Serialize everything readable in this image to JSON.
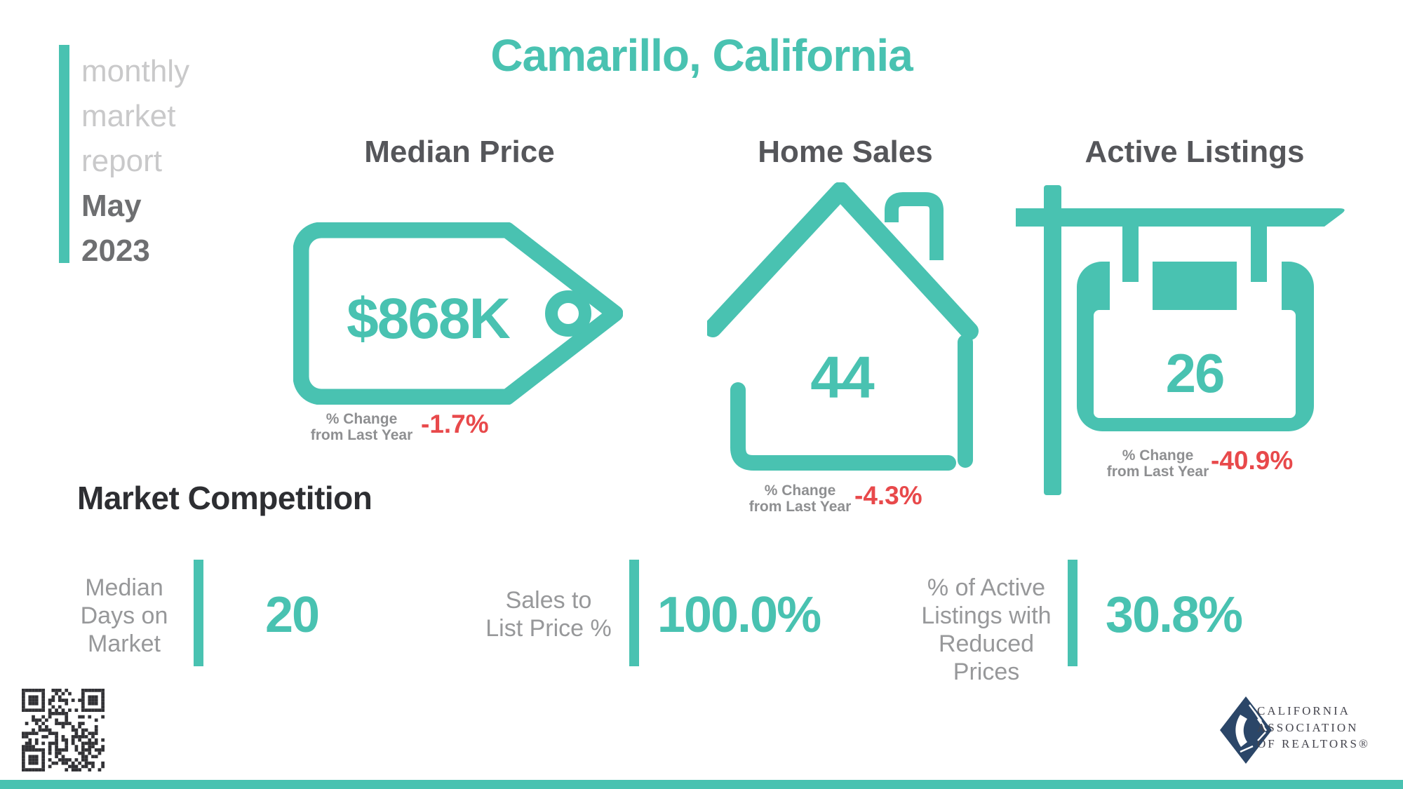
{
  "sidebar": {
    "brand_lines": [
      "monthly",
      "market",
      "report"
    ],
    "period_lines": [
      "May",
      "2023"
    ]
  },
  "title": "Camarillo, California",
  "metrics": [
    {
      "id": "median-price",
      "label": "Median Price",
      "value": "$868K",
      "change_label": [
        "% Change",
        "from Last Year"
      ],
      "change_value": "-1.7%",
      "icon": "price-tag-icon"
    },
    {
      "id": "home-sales",
      "label": "Home Sales",
      "value": "44",
      "change_label": [
        "% Change",
        "from Last Year"
      ],
      "change_value": "-4.3%",
      "icon": "house-icon"
    },
    {
      "id": "active-listings",
      "label": "Active Listings",
      "value": "26",
      "change_label": [
        "% Change",
        "from Last Year"
      ],
      "change_value": "-40.9%",
      "icon": "for-sale-sign-icon"
    }
  ],
  "market_competition": {
    "title": "Market Competition",
    "stats": [
      {
        "label_lines": [
          "Median",
          "Days on",
          "Market"
        ],
        "value": "20"
      },
      {
        "label_lines": [
          "Sales to",
          "List Price %"
        ],
        "value": "100.0%"
      },
      {
        "label_lines": [
          "% of Active",
          "Listings with",
          "Reduced Prices"
        ],
        "value": "30.8%"
      }
    ]
  },
  "footer": {
    "qr_code": "qr-code",
    "org_lines": [
      "CALIFORNIA",
      "ASSOCIATION",
      "OF REALTORS®"
    ]
  },
  "colors": {
    "teal": "#49C2B1",
    "red": "#E8494B",
    "heading_gray": "#55565A",
    "label_gray": "#97989A",
    "light_gray": "#C9C9CA",
    "dark": "#2D2E32",
    "navy": "#2B4668"
  }
}
